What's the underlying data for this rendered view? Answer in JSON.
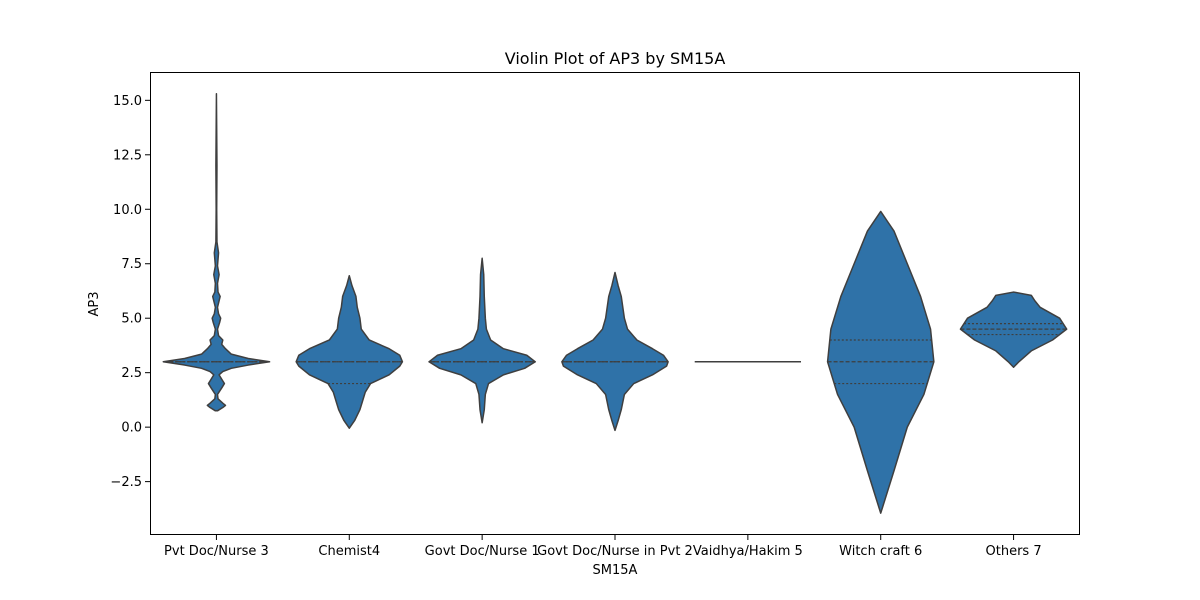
{
  "chart_data": {
    "type": "violin",
    "title": "Violin Plot of AP3 by SM15A",
    "xlabel": "SM15A",
    "ylabel": "AP3",
    "ylim": [
      -4.95,
      16.3
    ],
    "yticks": [
      -2.5,
      0.0,
      2.5,
      5.0,
      7.5,
      10.0,
      12.5,
      15.0
    ],
    "ytick_labels": [
      "−2.5",
      "0.0",
      "2.5",
      "5.0",
      "7.5",
      "10.0",
      "12.5",
      "15.0"
    ],
    "grid": false,
    "inner": "quartile",
    "colors": {
      "fill": "#2f72a8",
      "edge": "#3f3f3f",
      "axis": "#000000",
      "quartile": "#3f3f3f"
    },
    "categories": [
      "Pvt Doc/Nurse 3",
      "Chemist4",
      "Govt Doc/Nurse 1",
      "Govt Doc/Nurse in Pvt 2",
      "Vaidhya/Hakim 5",
      "Witch craft 6",
      "Others 7"
    ],
    "violins": [
      {
        "category": "Pvt Doc/Nurse 3",
        "quartiles": [
          3.0,
          3.0,
          3.0
        ],
        "range": [
          0.75,
          15.3
        ],
        "density": [
          [
            0.75,
            0.02
          ],
          [
            0.9,
            0.12
          ],
          [
            1.0,
            0.17
          ],
          [
            1.1,
            0.12
          ],
          [
            1.3,
            0.03
          ],
          [
            1.5,
            0.02
          ],
          [
            1.8,
            0.1
          ],
          [
            2.0,
            0.15
          ],
          [
            2.2,
            0.1
          ],
          [
            2.4,
            0.05
          ],
          [
            2.55,
            0.12
          ],
          [
            2.7,
            0.28
          ],
          [
            2.85,
            0.6
          ],
          [
            3.0,
            1.0
          ],
          [
            3.15,
            0.6
          ],
          [
            3.35,
            0.28
          ],
          [
            3.6,
            0.17
          ],
          [
            3.8,
            0.1
          ],
          [
            4.0,
            0.12
          ],
          [
            4.2,
            0.04
          ],
          [
            4.5,
            0.02
          ],
          [
            4.8,
            0.06
          ],
          [
            5.0,
            0.08
          ],
          [
            5.2,
            0.04
          ],
          [
            5.5,
            0.02
          ],
          [
            5.8,
            0.05
          ],
          [
            6.0,
            0.07
          ],
          [
            6.2,
            0.03
          ],
          [
            6.6,
            0.02
          ],
          [
            7.0,
            0.05
          ],
          [
            7.4,
            0.02
          ],
          [
            8.0,
            0.04
          ],
          [
            8.5,
            0.01
          ],
          [
            10.0,
            0.005
          ],
          [
            12.0,
            0.01
          ],
          [
            15.3,
            0.0
          ]
        ]
      },
      {
        "category": "Chemist4",
        "quartiles": [
          2.0,
          3.0,
          3.0
        ],
        "range": [
          -0.05,
          6.95
        ],
        "density": [
          [
            -0.05,
            0.0
          ],
          [
            0.3,
            0.04
          ],
          [
            0.8,
            0.08
          ],
          [
            1.2,
            0.1
          ],
          [
            1.6,
            0.12
          ],
          [
            2.0,
            0.16
          ],
          [
            2.4,
            0.3
          ],
          [
            2.8,
            0.38
          ],
          [
            3.0,
            0.4
          ],
          [
            3.3,
            0.38
          ],
          [
            3.6,
            0.3
          ],
          [
            4.0,
            0.15
          ],
          [
            4.5,
            0.09
          ],
          [
            5.0,
            0.08
          ],
          [
            5.5,
            0.06
          ],
          [
            6.0,
            0.05
          ],
          [
            6.5,
            0.02
          ],
          [
            6.95,
            0.0
          ]
        ]
      },
      {
        "category": "Govt Doc/Nurse 1",
        "quartiles": [
          3.0,
          3.0,
          3.0
        ],
        "range": [
          0.2,
          7.75
        ],
        "density": [
          [
            0.2,
            0.0
          ],
          [
            0.8,
            0.02
          ],
          [
            1.5,
            0.03
          ],
          [
            2.0,
            0.06
          ],
          [
            2.4,
            0.2
          ],
          [
            2.7,
            0.4
          ],
          [
            3.0,
            0.5
          ],
          [
            3.3,
            0.42
          ],
          [
            3.6,
            0.2
          ],
          [
            4.0,
            0.08
          ],
          [
            4.5,
            0.04
          ],
          [
            5.0,
            0.03
          ],
          [
            6.0,
            0.02
          ],
          [
            7.0,
            0.015
          ],
          [
            7.75,
            0.0
          ]
        ]
      },
      {
        "category": "Govt Doc/Nurse in Pvt 2",
        "quartiles": [
          3.0,
          3.0,
          3.0
        ],
        "range": [
          -0.15,
          7.1
        ],
        "density": [
          [
            -0.15,
            0.0
          ],
          [
            0.3,
            0.02
          ],
          [
            0.8,
            0.04
          ],
          [
            1.5,
            0.06
          ],
          [
            2.0,
            0.12
          ],
          [
            2.4,
            0.24
          ],
          [
            2.8,
            0.33
          ],
          [
            3.0,
            0.34
          ],
          [
            3.3,
            0.31
          ],
          [
            3.6,
            0.24
          ],
          [
            4.0,
            0.14
          ],
          [
            4.5,
            0.08
          ],
          [
            5.0,
            0.06
          ],
          [
            5.5,
            0.05
          ],
          [
            6.0,
            0.04
          ],
          [
            6.5,
            0.02
          ],
          [
            7.1,
            0.0
          ]
        ]
      },
      {
        "category": "Vaidhya/Hakim 5",
        "quartiles": [
          3.0,
          3.0,
          3.0
        ],
        "range": [
          3.0,
          3.0
        ],
        "flat_value": 3.0,
        "density": []
      },
      {
        "category": "Witch craft 6",
        "quartiles": [
          2.0,
          3.0,
          4.0
        ],
        "range": [
          -3.95,
          9.9
        ],
        "density": [
          [
            -3.95,
            0.0
          ],
          [
            -2.0,
            0.02
          ],
          [
            0.0,
            0.04
          ],
          [
            1.5,
            0.065
          ],
          [
            3.0,
            0.08
          ],
          [
            4.5,
            0.075
          ],
          [
            6.0,
            0.06
          ],
          [
            7.5,
            0.04
          ],
          [
            9.0,
            0.02
          ],
          [
            9.9,
            0.0
          ]
        ]
      },
      {
        "category": "Others 7",
        "quartiles": [
          4.25,
          4.5,
          4.75
        ],
        "range": [
          2.75,
          6.2
        ],
        "density": [
          [
            2.75,
            0.0
          ],
          [
            3.0,
            0.03
          ],
          [
            3.5,
            0.1
          ],
          [
            4.0,
            0.22
          ],
          [
            4.5,
            0.3
          ],
          [
            5.0,
            0.26
          ],
          [
            5.5,
            0.15
          ],
          [
            5.8,
            0.12
          ],
          [
            6.05,
            0.1
          ],
          [
            6.2,
            0.0
          ]
        ]
      }
    ]
  }
}
